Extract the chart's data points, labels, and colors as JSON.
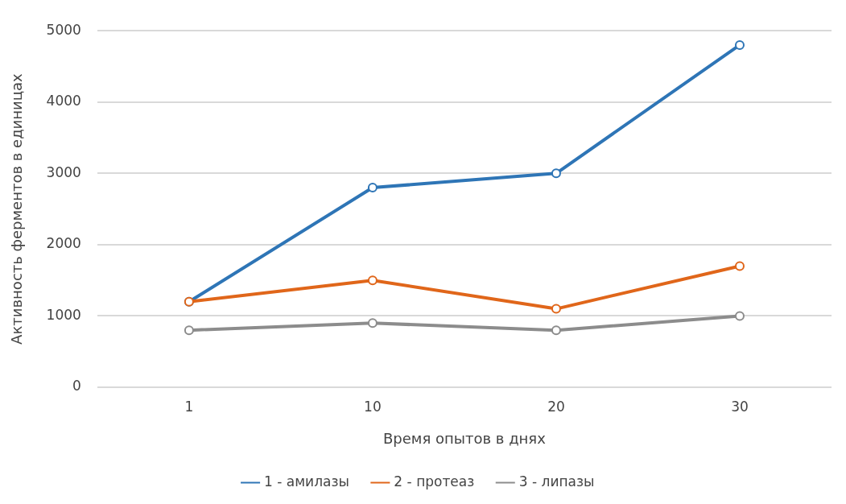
{
  "chart_data": {
    "type": "line",
    "xlabel": "Время опытов в днях",
    "ylabel": "Активность ферментов в единицах",
    "categories": [
      "1",
      "10",
      "20",
      "30"
    ],
    "series": [
      {
        "name": "1 - амилазы",
        "color": "#2e75b6",
        "values": [
          1200,
          2800,
          3000,
          4800
        ]
      },
      {
        "name": "2 - протеаз",
        "color": "#e0661a",
        "values": [
          1200,
          1500,
          1100,
          1700
        ]
      },
      {
        "name": "3 - липазы",
        "color": "#8c8c8c",
        "values": [
          800,
          900,
          800,
          1000
        ]
      }
    ],
    "ylim": [
      0,
      5000
    ],
    "yticks": [
      0,
      1000,
      2000,
      3000,
      4000,
      5000
    ],
    "grid": "y",
    "legend": "bottom",
    "marker": "circle",
    "line_style": "solid"
  }
}
